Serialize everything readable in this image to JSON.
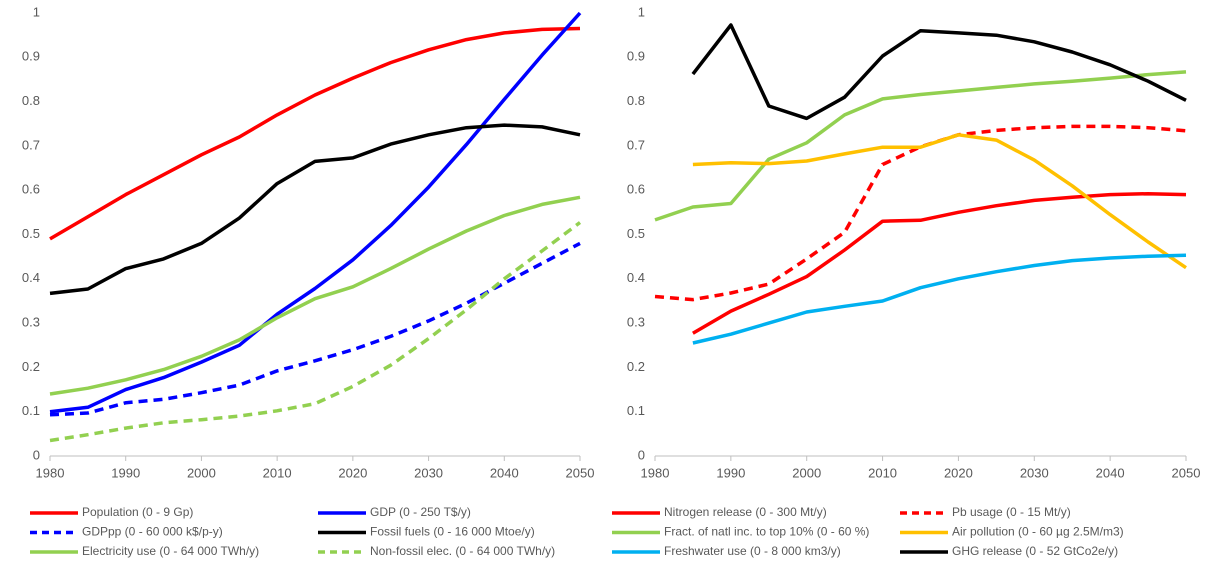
{
  "chart_data": [
    {
      "type": "line",
      "x": [
        1980,
        1985,
        1990,
        1995,
        2000,
        2005,
        2010,
        2015,
        2020,
        2025,
        2030,
        2035,
        2040,
        2045,
        2050
      ],
      "xlim": [
        1980,
        2050
      ],
      "xticks": [
        1980,
        1990,
        2000,
        2010,
        2020,
        2030,
        2040,
        2050
      ],
      "ylim": [
        0,
        1
      ],
      "yticks": [
        0,
        0.1,
        0.2,
        0.3,
        0.4,
        0.5,
        0.6,
        0.7,
        0.8,
        0.9,
        1
      ],
      "grid": false,
      "series": [
        {
          "name": "Population (0 - 9 Gp)",
          "color": "#ff0000",
          "dashed": false,
          "values": [
            0.49,
            0.54,
            0.59,
            0.635,
            0.68,
            0.72,
            0.77,
            0.815,
            0.853,
            0.888,
            0.917,
            0.94,
            0.955,
            0.963,
            0.965
          ]
        },
        {
          "name": "GDP (0 - 250 T$/y)",
          "color": "#0000ff",
          "dashed": false,
          "values": [
            0.1,
            0.11,
            0.15,
            0.177,
            0.212,
            0.25,
            0.32,
            0.378,
            0.443,
            0.52,
            0.607,
            0.703,
            0.805,
            0.905,
            1.0
          ]
        },
        {
          "name": "GDPpp (0 - 60 000 k$/p-y)",
          "color": "#0000ff",
          "dashed": true,
          "values": [
            0.093,
            0.097,
            0.12,
            0.128,
            0.143,
            0.16,
            0.192,
            0.215,
            0.24,
            0.27,
            0.305,
            0.345,
            0.39,
            0.435,
            0.48
          ]
        },
        {
          "name": "Fossil fuels (0 - 16 000 Mtoe/y)",
          "color": "#000000",
          "dashed": false,
          "values": [
            0.367,
            0.377,
            0.423,
            0.445,
            0.48,
            0.537,
            0.615,
            0.665,
            0.673,
            0.704,
            0.725,
            0.741,
            0.747,
            0.743,
            0.725
          ]
        },
        {
          "name": "Electricity use (0 - 64 000 TWh/y)",
          "color": "#92d050",
          "dashed": false,
          "values": [
            0.14,
            0.153,
            0.172,
            0.195,
            0.225,
            0.262,
            0.312,
            0.355,
            0.382,
            0.423,
            0.467,
            0.508,
            0.543,
            0.568,
            0.584
          ]
        },
        {
          "name": "Non-fossil elec. (0 - 64 000 TWh/y)",
          "color": "#92d050",
          "dashed": true,
          "values": [
            0.035,
            0.048,
            0.063,
            0.075,
            0.082,
            0.09,
            0.102,
            0.118,
            0.157,
            0.205,
            0.265,
            0.33,
            0.4,
            0.463,
            0.527
          ]
        }
      ]
    },
    {
      "type": "line",
      "x": [
        1980,
        1985,
        1990,
        1995,
        2000,
        2005,
        2010,
        2015,
        2020,
        2025,
        2030,
        2035,
        2040,
        2045,
        2050
      ],
      "xlim": [
        1980,
        2050
      ],
      "xticks": [
        1980,
        1990,
        2000,
        2010,
        2020,
        2030,
        2040,
        2050
      ],
      "ylim": [
        0,
        1
      ],
      "yticks": [
        0,
        0.1,
        0.2,
        0.3,
        0.4,
        0.5,
        0.6,
        0.7,
        0.8,
        0.9,
        1
      ],
      "grid": false,
      "series": [
        {
          "name": "Nitrogen release (0 - 300 Mt/y)",
          "color": "#ff0000",
          "dashed": false,
          "values": [
            null,
            0.277,
            0.327,
            0.365,
            0.405,
            0.465,
            0.53,
            0.532,
            0.55,
            0.565,
            0.577,
            0.584,
            0.59,
            0.592,
            0.59
          ]
        },
        {
          "name": "Pb usage (0 -  15 Mt/y)",
          "color": "#ff0000",
          "dashed": true,
          "values": [
            0.36,
            0.353,
            0.368,
            0.388,
            0.445,
            0.505,
            0.658,
            0.698,
            0.725,
            0.735,
            0.741,
            0.744,
            0.744,
            0.741,
            0.734
          ]
        },
        {
          "name": "Fract. of natl inc. to top 10% (0 -  60 %)",
          "color": "#92d050",
          "dashed": false,
          "values": [
            0.533,
            0.562,
            0.57,
            0.67,
            0.707,
            0.77,
            0.806,
            0.816,
            0.824,
            0.832,
            0.84,
            0.846,
            0.853,
            0.861,
            0.867
          ]
        },
        {
          "name": "Air pollution (0 - 60 µg 2.5M/m3)",
          "color": "#ffc000",
          "dashed": false,
          "values": [
            null,
            0.658,
            0.662,
            0.66,
            0.666,
            0.682,
            0.697,
            0.697,
            0.725,
            0.713,
            0.668,
            0.61,
            0.545,
            0.483,
            0.425
          ]
        },
        {
          "name": "Freshwater use (0 - 8 000 km3/y)",
          "color": "#00b0f0",
          "dashed": false,
          "values": [
            null,
            0.255,
            0.275,
            0.3,
            0.325,
            0.338,
            0.35,
            0.38,
            0.4,
            0.416,
            0.43,
            0.441,
            0.447,
            0.451,
            0.453
          ]
        },
        {
          "name": "GHG release (0 - 52 GtCo2e/y)",
          "color": "#000000",
          "dashed": false,
          "values": [
            null,
            0.862,
            0.973,
            0.79,
            0.762,
            0.81,
            0.903,
            0.96,
            0.955,
            0.95,
            0.935,
            0.912,
            0.883,
            0.846,
            0.803
          ]
        }
      ]
    }
  ]
}
